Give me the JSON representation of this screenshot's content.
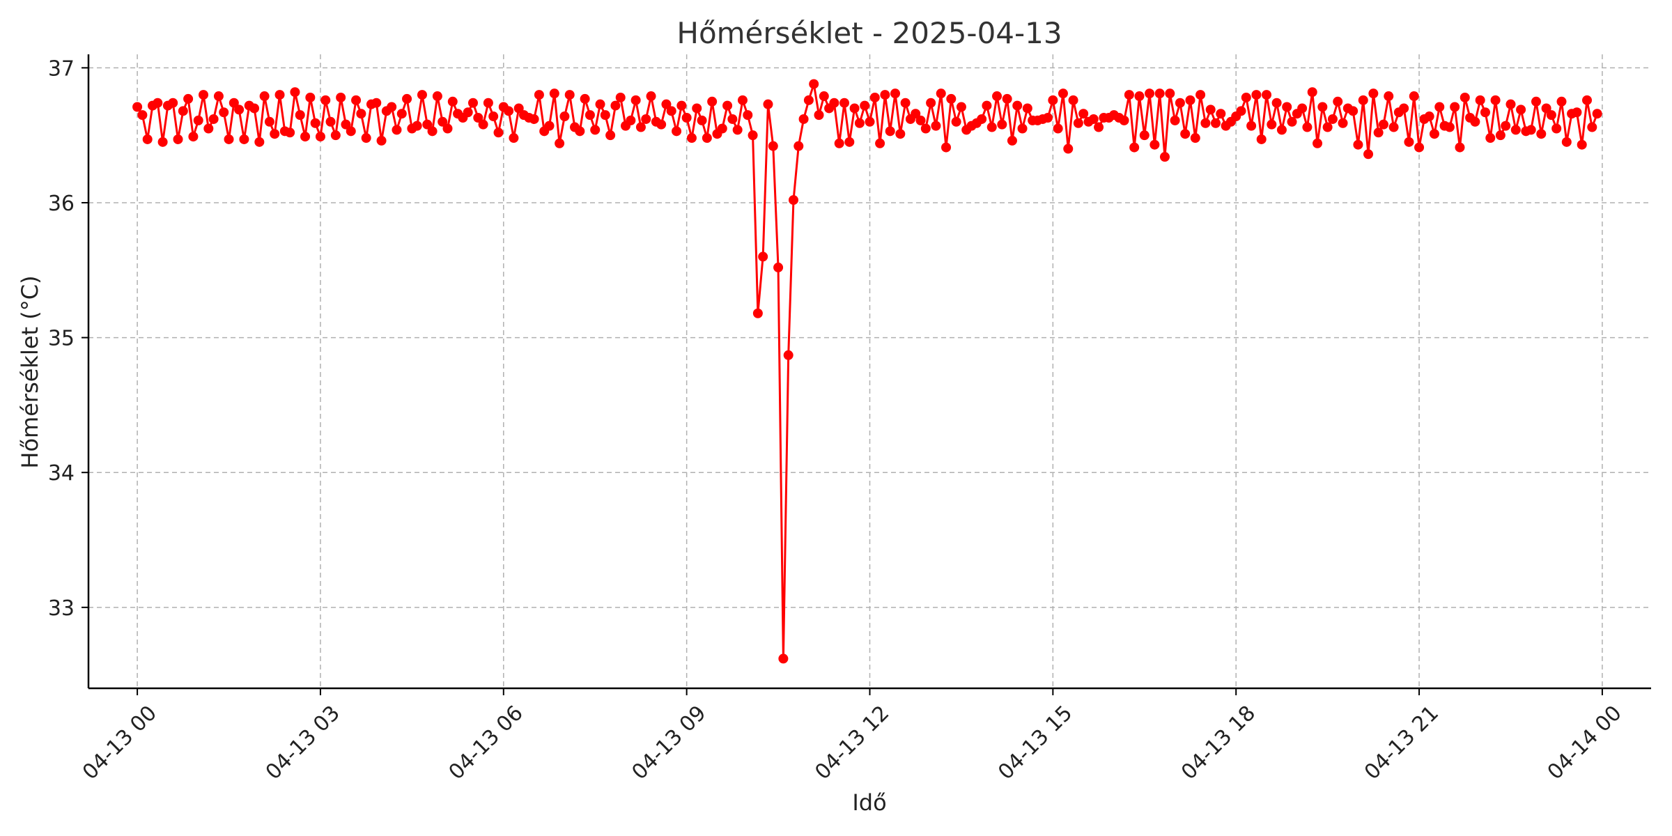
{
  "chart_data": {
    "type": "line",
    "title": "Hőmérséklet - 2025-04-13",
    "xlabel": "Idő",
    "ylabel": "Hőmérséklet (°C)",
    "series_color": "#ff0000",
    "marker": "circle",
    "grid": true,
    "x_start": "2025-04-13 00:00",
    "x_end": "2025-04-14 00:00",
    "sample_interval_minutes": 5,
    "xlim_hours": [
      -0.8,
      24.8
    ],
    "ylim": [
      32.4,
      37.1
    ],
    "x_ticks": [
      {
        "hour": 0,
        "label": "04-13 00"
      },
      {
        "hour": 3,
        "label": "04-13 03"
      },
      {
        "hour": 6,
        "label": "04-13 06"
      },
      {
        "hour": 9,
        "label": "04-13 09"
      },
      {
        "hour": 12,
        "label": "04-13 12"
      },
      {
        "hour": 15,
        "label": "04-13 15"
      },
      {
        "hour": 18,
        "label": "04-13 18"
      },
      {
        "hour": 21,
        "label": "04-13 21"
      },
      {
        "hour": 24,
        "label": "04-14 00"
      }
    ],
    "y_ticks": [
      {
        "value": 33,
        "label": "33"
      },
      {
        "value": 34,
        "label": "34"
      },
      {
        "value": 35,
        "label": "35"
      },
      {
        "value": 36,
        "label": "36"
      },
      {
        "value": 37,
        "label": "37"
      }
    ],
    "values": [
      36.71,
      36.65,
      36.47,
      36.72,
      36.74,
      36.45,
      36.72,
      36.74,
      36.47,
      36.68,
      36.77,
      36.49,
      36.61,
      36.8,
      36.55,
      36.62,
      36.79,
      36.67,
      36.47,
      36.74,
      36.69,
      36.47,
      36.72,
      36.7,
      36.45,
      36.79,
      36.6,
      36.51,
      36.8,
      36.53,
      36.52,
      36.82,
      36.65,
      36.49,
      36.78,
      36.59,
      36.49,
      36.76,
      36.6,
      36.5,
      36.78,
      36.58,
      36.53,
      36.76,
      36.66,
      36.48,
      36.73,
      36.74,
      36.46,
      36.68,
      36.71,
      36.54,
      36.66,
      36.77,
      36.55,
      36.57,
      36.8,
      36.58,
      36.53,
      36.79,
      36.6,
      36.55,
      36.75,
      36.66,
      36.63,
      36.67,
      36.74,
      36.63,
      36.58,
      36.74,
      36.64,
      36.52,
      36.71,
      36.68,
      36.48,
      36.7,
      36.65,
      36.63,
      36.62,
      36.8,
      36.53,
      36.57,
      36.81,
      36.44,
      36.64,
      36.8,
      36.56,
      36.53,
      36.77,
      36.65,
      36.54,
      36.73,
      36.65,
      36.5,
      36.72,
      36.78,
      36.57,
      36.61,
      36.76,
      36.56,
      36.62,
      36.79,
      36.6,
      36.58,
      36.73,
      36.68,
      36.53,
      36.72,
      36.63,
      36.48,
      36.7,
      36.61,
      36.48,
      36.75,
      36.51,
      36.55,
      36.72,
      36.62,
      36.54,
      36.76,
      36.65,
      36.5,
      35.18,
      35.6,
      36.73,
      36.42,
      35.52,
      32.62,
      34.87,
      36.02,
      36.42,
      36.62,
      36.76,
      36.88,
      36.65,
      36.79,
      36.7,
      36.74,
      36.44,
      36.74,
      36.45,
      36.7,
      36.59,
      36.72,
      36.6,
      36.78,
      36.44,
      36.8,
      36.53,
      36.81,
      36.51,
      36.74,
      36.62,
      36.66,
      36.61,
      36.55,
      36.74,
      36.57,
      36.81,
      36.41,
      36.77,
      36.6,
      36.71,
      36.54,
      36.57,
      36.59,
      36.62,
      36.72,
      36.56,
      36.79,
      36.58,
      36.77,
      36.46,
      36.72,
      36.55,
      36.7,
      36.61,
      36.61,
      36.62,
      36.63,
      36.76,
      36.55,
      36.81,
      36.4,
      36.76,
      36.59,
      36.66,
      36.6,
      36.62,
      36.56,
      36.63,
      36.63,
      36.65,
      36.63,
      36.61,
      36.8,
      36.41,
      36.79,
      36.5,
      36.81,
      36.43,
      36.81,
      36.34,
      36.81,
      36.61,
      36.74,
      36.51,
      36.76,
      36.48,
      36.8,
      36.59,
      36.69,
      36.59,
      36.66,
      36.57,
      36.6,
      36.64,
      36.68,
      36.78,
      36.57,
      36.8,
      36.47,
      36.8,
      36.58,
      36.74,
      36.54,
      36.71,
      36.6,
      36.66,
      36.7,
      36.56,
      36.82,
      36.44,
      36.71,
      36.56,
      36.62,
      36.75,
      36.59,
      36.7,
      36.68,
      36.43,
      36.76,
      36.36,
      36.81,
      36.52,
      36.58,
      36.79,
      36.56,
      36.67,
      36.7,
      36.45,
      36.79,
      36.41,
      36.62,
      36.64,
      36.51,
      36.71,
      36.57,
      36.56,
      36.71,
      36.41,
      36.78,
      36.63,
      36.6,
      36.76,
      36.67,
      36.48,
      36.76,
      36.5,
      36.57,
      36.73,
      36.54,
      36.69,
      36.53,
      36.54,
      36.75,
      36.51,
      36.7,
      36.65,
      36.55,
      36.75,
      36.45,
      36.66,
      36.67,
      36.43,
      36.76,
      36.56,
      36.66
    ]
  }
}
